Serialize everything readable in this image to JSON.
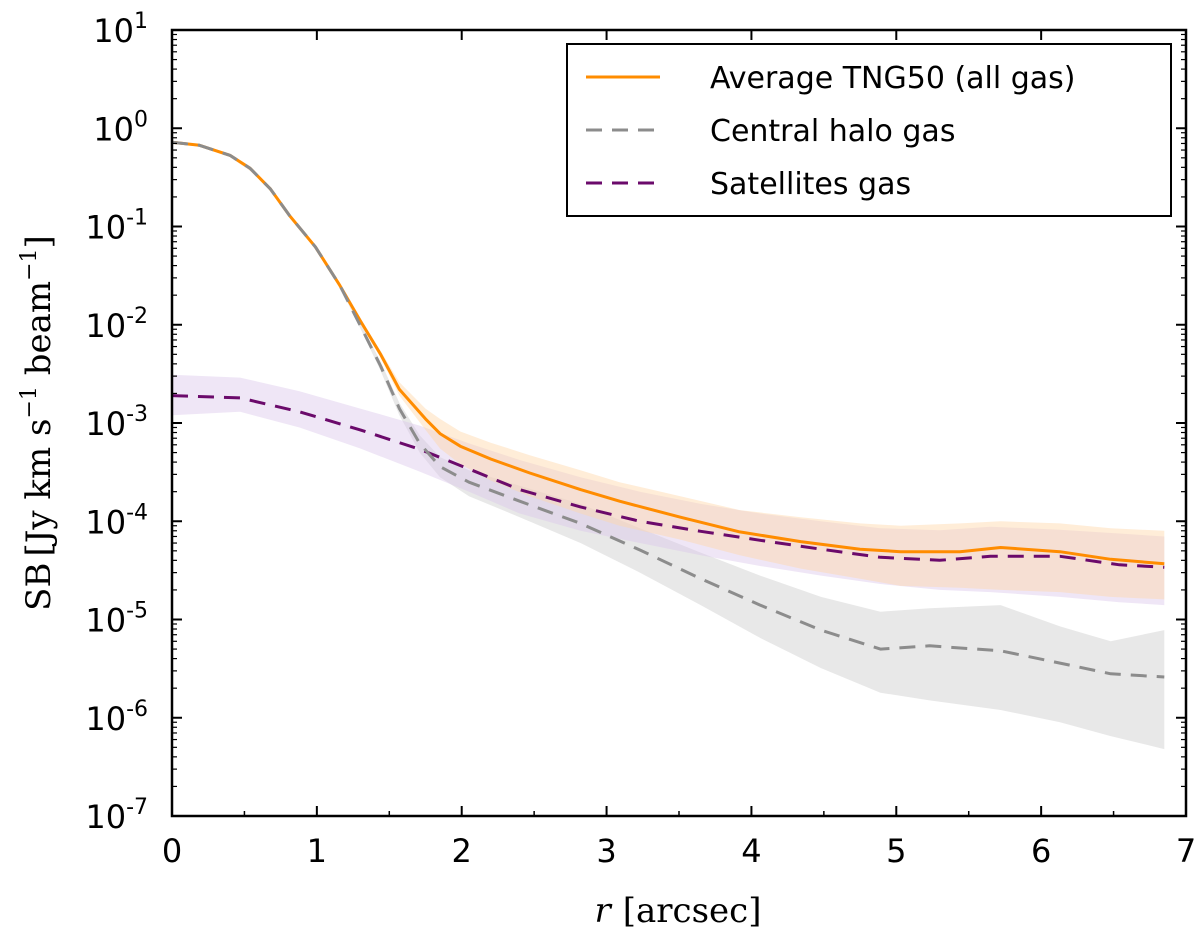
{
  "chart_data": {
    "type": "line",
    "title": "",
    "xlabel": "r [arcsec]",
    "xlabel_parts": {
      "var": "r",
      "unit": "[arcsec]"
    },
    "ylabel": "SB [Jy km s^-1 beam^-1]",
    "ylabel_parts": {
      "prefix": "SB",
      "unit": "[Jy km s",
      "exp1": "−1",
      "mid": " beam",
      "exp2": "−1",
      "close": "]"
    },
    "xlim": [
      0,
      7
    ],
    "ylim": [
      1e-07,
      10
    ],
    "yscale": "log",
    "grid": false,
    "legend_position": "top-right",
    "x_ticks": [
      "0",
      "1",
      "2",
      "3",
      "4",
      "5",
      "6",
      "7"
    ],
    "x_tick_values": [
      0,
      1,
      2,
      3,
      4,
      5,
      6,
      7
    ],
    "y_ticks": [
      {
        "base": "10",
        "exp": "1",
        "value": 1
      },
      {
        "base": "10",
        "exp": "0",
        "value": 0
      },
      {
        "base": "10",
        "exp": "-1",
        "value": -1
      },
      {
        "base": "10",
        "exp": "-2",
        "value": -2
      },
      {
        "base": "10",
        "exp": "-3",
        "value": -3
      },
      {
        "base": "10",
        "exp": "-4",
        "value": -4
      },
      {
        "base": "10",
        "exp": "-5",
        "value": -5
      },
      {
        "base": "10",
        "exp": "-6",
        "value": -6
      },
      {
        "base": "10",
        "exp": "-7",
        "value": -7
      }
    ],
    "series": [
      {
        "name": "Average TNG50 (all gas)",
        "color": "#ff8c00",
        "style": "solid",
        "band_color": "#ffd8a8",
        "x": [
          0,
          0.19,
          0.4,
          0.54,
          0.68,
          0.81,
          0.99,
          1.16,
          1.3,
          1.44,
          1.57,
          1.75,
          1.85,
          1.99,
          2.2,
          2.47,
          2.82,
          3.09,
          3.51,
          3.92,
          4.34,
          4.75,
          5.03,
          5.44,
          5.72,
          6.13,
          6.48,
          6.85
        ],
        "y": [
          0.72,
          0.67,
          0.53,
          0.39,
          0.24,
          0.13,
          0.062,
          0.025,
          0.011,
          0.005,
          0.0022,
          0.0011,
          0.00078,
          0.00058,
          0.00043,
          0.00031,
          0.00021,
          0.00016,
          0.00011,
          7.8e-05,
          6.2e-05,
          5.2e-05,
          4.9e-05,
          4.9e-05,
          5.4e-05,
          4.9e-05,
          4.1e-05,
          3.7e-05
        ],
        "band_lower": [
          0.7,
          0.65,
          0.51,
          0.37,
          0.23,
          0.125,
          0.06,
          0.024,
          0.0105,
          0.0046,
          0.0019,
          0.00085,
          0.00055,
          0.00038,
          0.00026,
          0.00018,
          0.00012,
          9e-05,
          6.5e-05,
          4.5e-05,
          3.3e-05,
          2.6e-05,
          2.2e-05,
          2.1e-05,
          2e-05,
          1.9e-05,
          1.7e-05,
          1.6e-05
        ],
        "band_upper": [
          0.74,
          0.69,
          0.55,
          0.41,
          0.25,
          0.135,
          0.064,
          0.026,
          0.0115,
          0.0054,
          0.0026,
          0.0014,
          0.0011,
          0.00082,
          0.00063,
          0.00047,
          0.00033,
          0.00025,
          0.00018,
          0.00013,
          0.00011,
          9.5e-05,
          9e-05,
          9.5e-05,
          0.0001,
          9.5e-05,
          8.5e-05,
          8e-05
        ]
      },
      {
        "name": "Central halo gas",
        "color": "#8c8c8c",
        "style": "dashed",
        "band_color": "#d9d9d9",
        "x": [
          0,
          0.19,
          0.4,
          0.54,
          0.68,
          0.81,
          0.99,
          1.16,
          1.3,
          1.44,
          1.57,
          1.71,
          1.85,
          2.05,
          2.4,
          2.82,
          3.23,
          3.65,
          4.06,
          4.48,
          4.89,
          5.23,
          5.72,
          6.13,
          6.48,
          6.85
        ],
        "y": [
          0.72,
          0.67,
          0.53,
          0.39,
          0.24,
          0.13,
          0.062,
          0.025,
          0.0098,
          0.0038,
          0.0014,
          0.00062,
          0.00036,
          0.00025,
          0.00016,
          9.5e-05,
          5.1e-05,
          2.6e-05,
          1.4e-05,
          7.8e-06,
          5e-06,
          5.4e-06,
          4.8e-06,
          3.6e-06,
          2.8e-06,
          2.6e-06
        ],
        "band_lower": [
          0.7,
          0.65,
          0.51,
          0.37,
          0.23,
          0.125,
          0.06,
          0.024,
          0.0092,
          0.0034,
          0.0012,
          0.0005,
          0.00028,
          0.00018,
          0.00011,
          6e-05,
          3e-05,
          1.4e-05,
          6.5e-06,
          3.2e-06,
          1.8e-06,
          1.5e-06,
          1.2e-06,
          9e-07,
          6.5e-07,
          4.8e-07
        ],
        "band_upper": [
          0.74,
          0.69,
          0.55,
          0.41,
          0.25,
          0.135,
          0.064,
          0.026,
          0.0105,
          0.0042,
          0.0016,
          0.00075,
          0.00045,
          0.00033,
          0.00023,
          0.00015,
          8.5e-05,
          4.8e-05,
          2.8e-05,
          1.7e-05,
          1.2e-05,
          1.3e-05,
          1.4e-05,
          8.5e-06,
          6e-06,
          7.8e-06
        ]
      },
      {
        "name": "Satellites gas",
        "color": "#6b0a6b",
        "style": "dashed",
        "band_color": "#dcc8ec",
        "x": [
          0,
          0.47,
          0.88,
          1.3,
          1.71,
          2.05,
          2.4,
          2.82,
          3.23,
          3.65,
          4.06,
          4.48,
          4.89,
          5.3,
          5.65,
          6.13,
          6.54,
          6.85
        ],
        "y": [
          0.0019,
          0.0018,
          0.0013,
          0.00085,
          0.00054,
          0.00034,
          0.00021,
          0.00014,
          0.0001,
          7.9e-05,
          6.4e-05,
          5.2e-05,
          4.3e-05,
          4e-05,
          4.4e-05,
          4.4e-05,
          3.6e-05,
          3.4e-05
        ],
        "band_lower": [
          0.0012,
          0.0013,
          0.0009,
          0.00055,
          0.00032,
          0.0002,
          0.00012,
          8e-05,
          6e-05,
          4.5e-05,
          3.5e-05,
          2.8e-05,
          2.3e-05,
          2e-05,
          1.9e-05,
          1.7e-05,
          1.5e-05,
          1.4e-05
        ],
        "band_upper": [
          0.0031,
          0.0029,
          0.0021,
          0.0014,
          0.00094,
          0.00062,
          0.00042,
          0.00028,
          0.0002,
          0.00015,
          0.00012,
          0.0001,
          8.5e-05,
          8.1e-05,
          8.8e-05,
          8.2e-05,
          7.5e-05,
          7e-05
        ]
      }
    ]
  }
}
